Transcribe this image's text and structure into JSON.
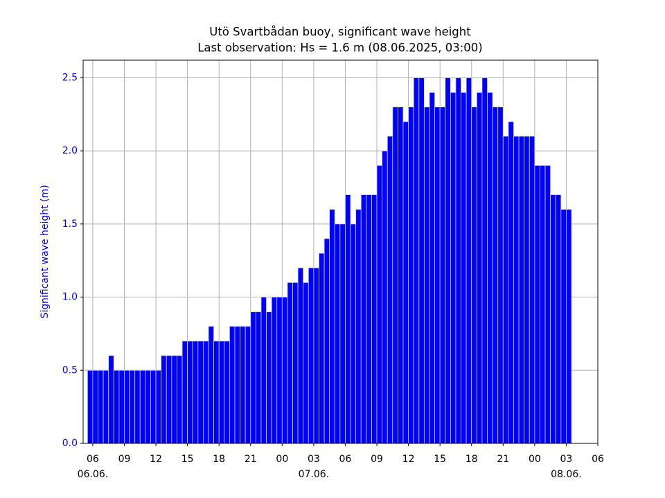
{
  "chart_data": {
    "type": "bar",
    "title": "Utö Svartbådan buoy, significant wave height",
    "subtitle": "Last observation: Hs = 1.6 m (08.06.2025, 03:00)",
    "ylabel": "Significant wave height (m)",
    "color": "#0000ff",
    "grid": true,
    "x": [
      "2025-06-06T05:30",
      "2025-06-06T06:00",
      "2025-06-06T06:30",
      "2025-06-06T07:00",
      "2025-06-06T07:30",
      "2025-06-06T08:00",
      "2025-06-06T08:30",
      "2025-06-06T09:00",
      "2025-06-06T09:30",
      "2025-06-06T10:00",
      "2025-06-06T10:30",
      "2025-06-06T11:00",
      "2025-06-06T11:30",
      "2025-06-06T12:00",
      "2025-06-06T12:30",
      "2025-06-06T13:00",
      "2025-06-06T13:30",
      "2025-06-06T14:00",
      "2025-06-06T14:30",
      "2025-06-06T15:00",
      "2025-06-06T15:30",
      "2025-06-06T16:00",
      "2025-06-06T16:30",
      "2025-06-06T17:00",
      "2025-06-06T17:30",
      "2025-06-06T18:00",
      "2025-06-06T18:30",
      "2025-06-06T19:00",
      "2025-06-06T19:30",
      "2025-06-06T20:00",
      "2025-06-06T20:30",
      "2025-06-06T21:00",
      "2025-06-06T21:30",
      "2025-06-06T22:00",
      "2025-06-06T22:30",
      "2025-06-06T23:00",
      "2025-06-06T23:30",
      "2025-06-07T00:00",
      "2025-06-07T00:30",
      "2025-06-07T01:00",
      "2025-06-07T01:30",
      "2025-06-07T02:00",
      "2025-06-07T02:30",
      "2025-06-07T03:00",
      "2025-06-07T03:30",
      "2025-06-07T04:00",
      "2025-06-07T04:30",
      "2025-06-07T05:00",
      "2025-06-07T05:30",
      "2025-06-07T06:00",
      "2025-06-07T06:30",
      "2025-06-07T07:00",
      "2025-06-07T07:30",
      "2025-06-07T08:00",
      "2025-06-07T08:30",
      "2025-06-07T09:00",
      "2025-06-07T09:30",
      "2025-06-07T10:00",
      "2025-06-07T10:30",
      "2025-06-07T11:00",
      "2025-06-07T11:30",
      "2025-06-07T12:00",
      "2025-06-07T12:30",
      "2025-06-07T13:00",
      "2025-06-07T13:30",
      "2025-06-07T14:00",
      "2025-06-07T14:30",
      "2025-06-07T15:00",
      "2025-06-07T15:30",
      "2025-06-07T16:00",
      "2025-06-07T16:30",
      "2025-06-07T17:00",
      "2025-06-07T17:30",
      "2025-06-07T18:00",
      "2025-06-07T18:30",
      "2025-06-07T19:00",
      "2025-06-07T19:30",
      "2025-06-07T20:00",
      "2025-06-07T20:30",
      "2025-06-07T21:00",
      "2025-06-07T21:30",
      "2025-06-07T22:00",
      "2025-06-07T22:30",
      "2025-06-07T23:00",
      "2025-06-07T23:30",
      "2025-06-08T00:00",
      "2025-06-08T00:30",
      "2025-06-08T01:00",
      "2025-06-08T01:30",
      "2025-06-08T02:00",
      "2025-06-08T02:30",
      "2025-06-08T03:00"
    ],
    "values": [
      0.5,
      0.5,
      0.5,
      0.5,
      0.6,
      0.5,
      0.5,
      0.5,
      0.5,
      0.5,
      0.5,
      0.5,
      0.5,
      0.5,
      0.6,
      0.6,
      0.6,
      0.6,
      0.7,
      0.7,
      0.7,
      0.7,
      0.7,
      0.8,
      0.7,
      0.7,
      0.7,
      0.8,
      0.8,
      0.8,
      0.8,
      0.9,
      0.9,
      1.0,
      0.9,
      1.0,
      1.0,
      1.0,
      1.1,
      1.1,
      1.2,
      1.1,
      1.2,
      1.2,
      1.3,
      1.4,
      1.6,
      1.5,
      1.5,
      1.7,
      1.5,
      1.6,
      1.7,
      1.7,
      1.7,
      1.9,
      2.0,
      2.1,
      2.3,
      2.3,
      2.2,
      2.3,
      2.5,
      2.5,
      2.3,
      2.4,
      2.3,
      2.3,
      2.5,
      2.4,
      2.5,
      2.4,
      2.5,
      2.3,
      2.4,
      2.5,
      2.4,
      2.3,
      2.3,
      2.1,
      2.2,
      2.1,
      2.1,
      2.1,
      2.1,
      1.9,
      1.9,
      1.9,
      1.7,
      1.7,
      1.6,
      1.6
    ],
    "xlim": [
      "2025-06-06T05:05",
      "2025-06-08T06:00"
    ],
    "xticks": [
      {
        "value": "2025-06-06T06:00",
        "label": "06"
      },
      {
        "value": "2025-06-06T09:00",
        "label": "09"
      },
      {
        "value": "2025-06-06T12:00",
        "label": "12"
      },
      {
        "value": "2025-06-06T15:00",
        "label": "15"
      },
      {
        "value": "2025-06-06T18:00",
        "label": "18"
      },
      {
        "value": "2025-06-06T21:00",
        "label": "21"
      },
      {
        "value": "2025-06-07T00:00",
        "label": "00"
      },
      {
        "value": "2025-06-07T03:00",
        "label": "03"
      },
      {
        "value": "2025-06-07T06:00",
        "label": "06"
      },
      {
        "value": "2025-06-07T09:00",
        "label": "09"
      },
      {
        "value": "2025-06-07T12:00",
        "label": "12"
      },
      {
        "value": "2025-06-07T15:00",
        "label": "15"
      },
      {
        "value": "2025-06-07T18:00",
        "label": "18"
      },
      {
        "value": "2025-06-07T21:00",
        "label": "21"
      },
      {
        "value": "2025-06-08T00:00",
        "label": "00"
      },
      {
        "value": "2025-06-08T03:00",
        "label": "03"
      },
      {
        "value": "2025-06-08T06:00",
        "label": "06"
      }
    ],
    "date_labels": [
      {
        "value": "2025-06-06T06:00",
        "label": "06.06."
      },
      {
        "value": "2025-06-07T03:00",
        "label": "07.06."
      },
      {
        "value": "2025-06-08T03:00",
        "label": "08.06."
      }
    ],
    "ylim": [
      0,
      2.62
    ],
    "yticks": [
      {
        "value": 0,
        "label": "0.0"
      },
      {
        "value": 0.5,
        "label": "0.5"
      },
      {
        "value": 1,
        "label": "1.0"
      },
      {
        "value": 1.5,
        "label": "1.5"
      },
      {
        "value": 2,
        "label": "2.0"
      },
      {
        "value": 2.5,
        "label": "2.5"
      }
    ]
  }
}
